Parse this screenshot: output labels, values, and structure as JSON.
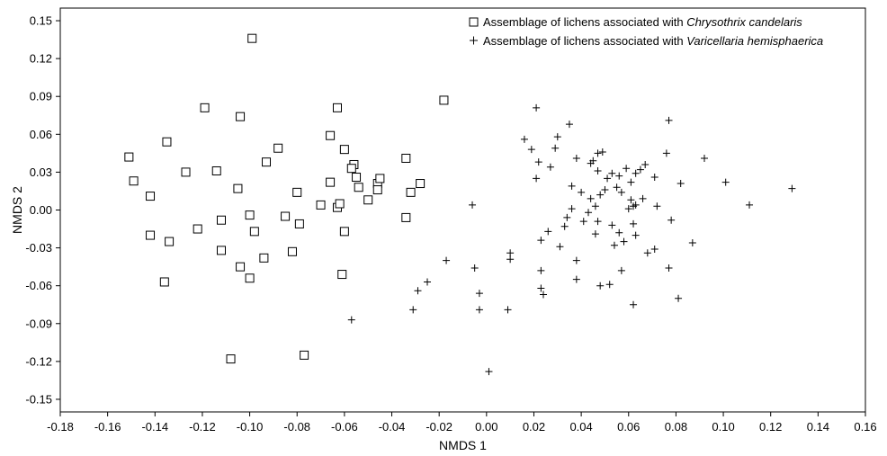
{
  "chart_data": {
    "type": "scatter",
    "xlabel": "NMDS 1",
    "ylabel": "NMDS 2",
    "xlim": [
      -0.18,
      0.16
    ],
    "ylim": [
      -0.16,
      0.16
    ],
    "x_ticks": [
      "-0.18",
      "-0.16",
      "-0.14",
      "-0.12",
      "-0.10",
      "-0.08",
      "-0.06",
      "-0.04",
      "-0.02",
      "0.00",
      "0.02",
      "0.04",
      "0.06",
      "0.08",
      "0.10",
      "0.12",
      "0.14",
      "0.16"
    ],
    "y_ticks": [
      "0.15",
      "0.12",
      "0.09",
      "0.06",
      "0.03",
      "0.00",
      "-0.03",
      "-0.06",
      "-0.09",
      "-0.12",
      "-0.15"
    ],
    "grid": false,
    "legend_position": "top-right",
    "series": [
      {
        "name_prefix": "Assemblage of lichens associated with ",
        "name_species": "Chrysothrix candelaris",
        "marker": "open-square",
        "points": [
          [
            -0.099,
            0.136
          ],
          [
            -0.119,
            0.081
          ],
          [
            -0.104,
            0.074
          ],
          [
            -0.063,
            0.081
          ],
          [
            -0.018,
            0.087
          ],
          [
            -0.135,
            0.054
          ],
          [
            -0.151,
            0.042
          ],
          [
            -0.149,
            0.023
          ],
          [
            -0.142,
            0.011
          ],
          [
            -0.127,
            0.03
          ],
          [
            -0.114,
            0.031
          ],
          [
            -0.093,
            0.038
          ],
          [
            -0.088,
            0.049
          ],
          [
            -0.066,
            0.059
          ],
          [
            -0.06,
            0.048
          ],
          [
            -0.056,
            0.036
          ],
          [
            -0.057,
            0.033
          ],
          [
            -0.055,
            0.026
          ],
          [
            -0.054,
            0.018
          ],
          [
            -0.046,
            0.021
          ],
          [
            -0.045,
            0.025
          ],
          [
            -0.034,
            0.041
          ],
          [
            -0.032,
            0.014
          ],
          [
            -0.028,
            0.021
          ],
          [
            -0.105,
            0.017
          ],
          [
            -0.08,
            0.014
          ],
          [
            -0.066,
            0.022
          ],
          [
            -0.07,
            0.004
          ],
          [
            -0.063,
            0.002
          ],
          [
            -0.062,
            0.005
          ],
          [
            -0.05,
            0.008
          ],
          [
            -0.046,
            0.016
          ],
          [
            -0.085,
            -0.005
          ],
          [
            -0.079,
            -0.011
          ],
          [
            -0.06,
            -0.017
          ],
          [
            -0.034,
            -0.006
          ],
          [
            -0.1,
            -0.004
          ],
          [
            -0.098,
            -0.017
          ],
          [
            -0.112,
            -0.008
          ],
          [
            -0.122,
            -0.015
          ],
          [
            -0.142,
            -0.02
          ],
          [
            -0.134,
            -0.025
          ],
          [
            -0.112,
            -0.032
          ],
          [
            -0.082,
            -0.033
          ],
          [
            -0.094,
            -0.038
          ],
          [
            -0.104,
            -0.045
          ],
          [
            -0.1,
            -0.054
          ],
          [
            -0.061,
            -0.051
          ],
          [
            -0.136,
            -0.057
          ],
          [
            -0.108,
            -0.118
          ],
          [
            -0.077,
            -0.115
          ]
        ]
      },
      {
        "name_prefix": "Assemblage of lichens associated with ",
        "name_species": "Varicellaria hemisphaerica",
        "marker": "plus",
        "points": [
          [
            0.021,
            0.081
          ],
          [
            0.077,
            0.071
          ],
          [
            0.035,
            0.068
          ],
          [
            0.016,
            0.056
          ],
          [
            0.03,
            0.058
          ],
          [
            0.019,
            0.048
          ],
          [
            0.029,
            0.049
          ],
          [
            0.047,
            0.045
          ],
          [
            0.049,
            0.046
          ],
          [
            0.067,
            0.036
          ],
          [
            0.076,
            0.045
          ],
          [
            0.092,
            0.041
          ],
          [
            0.022,
            0.038
          ],
          [
            0.027,
            0.034
          ],
          [
            0.038,
            0.041
          ],
          [
            0.044,
            0.037
          ],
          [
            0.045,
            0.039
          ],
          [
            0.047,
            0.031
          ],
          [
            0.053,
            0.029
          ],
          [
            0.059,
            0.033
          ],
          [
            0.063,
            0.029
          ],
          [
            0.065,
            0.032
          ],
          [
            0.051,
            0.025
          ],
          [
            0.056,
            0.027
          ],
          [
            0.061,
            0.022
          ],
          [
            0.071,
            0.026
          ],
          [
            0.082,
            0.021
          ],
          [
            0.101,
            0.022
          ],
          [
            0.129,
            0.017
          ],
          [
            0.111,
            0.004
          ],
          [
            0.021,
            0.025
          ],
          [
            0.036,
            0.019
          ],
          [
            0.04,
            0.014
          ],
          [
            0.044,
            0.009
          ],
          [
            0.048,
            0.012
          ],
          [
            0.05,
            0.016
          ],
          [
            0.055,
            0.018
          ],
          [
            0.057,
            0.014
          ],
          [
            0.061,
            0.008
          ],
          [
            0.063,
            0.004
          ],
          [
            0.066,
            0.009
          ],
          [
            0.072,
            0.003
          ],
          [
            0.06,
            0.001
          ],
          [
            0.062,
            0.003
          ],
          [
            0.043,
            -0.002
          ],
          [
            0.046,
            0.003
          ],
          [
            0.034,
            -0.006
          ],
          [
            0.036,
            0.001
          ],
          [
            0.041,
            -0.009
          ],
          [
            0.047,
            -0.009
          ],
          [
            0.053,
            -0.012
          ],
          [
            0.056,
            -0.018
          ],
          [
            0.062,
            -0.011
          ],
          [
            0.063,
            -0.02
          ],
          [
            0.078,
            -0.008
          ],
          [
            0.087,
            -0.026
          ],
          [
            0.068,
            -0.034
          ],
          [
            0.071,
            -0.031
          ],
          [
            0.058,
            -0.025
          ],
          [
            0.054,
            -0.028
          ],
          [
            0.046,
            -0.019
          ],
          [
            0.033,
            -0.013
          ],
          [
            0.026,
            -0.017
          ],
          [
            0.023,
            -0.024
          ],
          [
            0.031,
            -0.029
          ],
          [
            0.038,
            -0.04
          ],
          [
            0.038,
            -0.055
          ],
          [
            0.048,
            -0.06
          ],
          [
            0.052,
            -0.059
          ],
          [
            0.057,
            -0.048
          ],
          [
            0.077,
            -0.046
          ],
          [
            0.081,
            -0.07
          ],
          [
            0.062,
            -0.075
          ],
          [
            0.023,
            -0.048
          ],
          [
            0.023,
            -0.062
          ],
          [
            0.024,
            -0.067
          ],
          [
            0.01,
            -0.039
          ],
          [
            0.01,
            -0.034
          ],
          [
            -0.006,
            0.004
          ],
          [
            -0.017,
            -0.04
          ],
          [
            -0.005,
            -0.046
          ],
          [
            -0.003,
            -0.066
          ],
          [
            -0.025,
            -0.057
          ],
          [
            -0.029,
            -0.064
          ],
          [
            -0.031,
            -0.079
          ],
          [
            -0.003,
            -0.079
          ],
          [
            0.009,
            -0.079
          ],
          [
            -0.057,
            -0.087
          ],
          [
            0.001,
            -0.128
          ]
        ]
      }
    ]
  }
}
